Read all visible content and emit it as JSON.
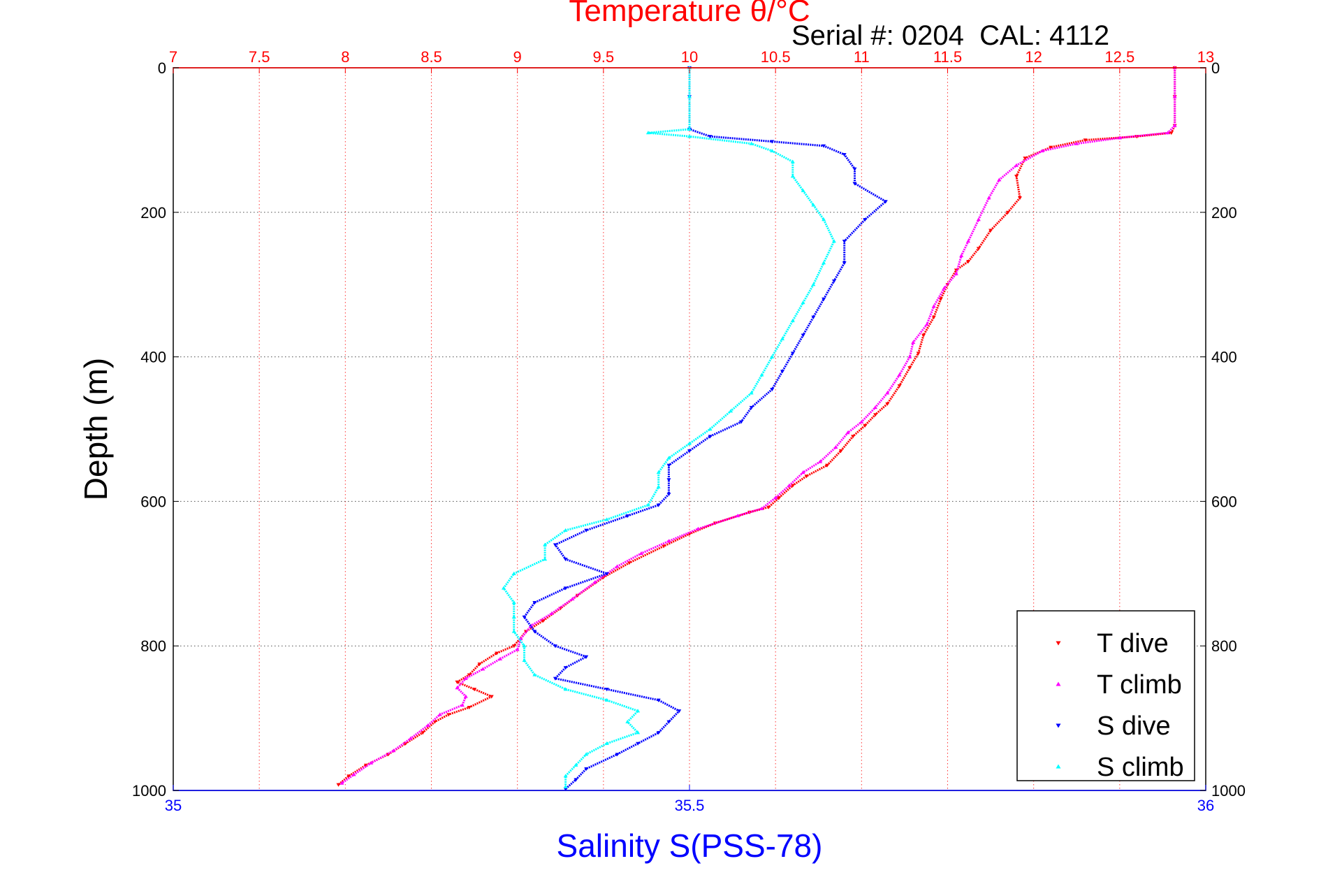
{
  "chart_data": {
    "type": "scatter",
    "title": "Temperature θ/°C",
    "annotation": "Serial #: 0204  CAL: 4112",
    "xlabel": "Salinity S(PSS-78)",
    "ylabel": "Depth (m)",
    "y_reversed": true,
    "ylim": [
      0,
      1000
    ],
    "yticks": [
      "0",
      "200",
      "400",
      "600",
      "800",
      "1000"
    ],
    "temperature_axis": {
      "position": "top",
      "range": [
        7,
        13
      ],
      "ticks": [
        "7",
        "7.5",
        "8",
        "8.5",
        "9",
        "9.5",
        "10",
        "10.5",
        "11",
        "11.5",
        "12",
        "12.5",
        "13"
      ],
      "color": "#ff0000"
    },
    "salinity_axis": {
      "position": "bottom",
      "range": [
        35,
        36
      ],
      "ticks": [
        "35",
        "35.5",
        "36"
      ],
      "color": "#0000ff"
    },
    "grid": true,
    "legend_position": "bottom-right",
    "series": [
      {
        "name": "T dive",
        "axis": "temperature",
        "color": "#ff0000",
        "marker": "triangle-down",
        "points": [
          [
            12.82,
            0
          ],
          [
            12.82,
            40
          ],
          [
            12.82,
            80
          ],
          [
            12.8,
            90
          ],
          [
            12.6,
            95
          ],
          [
            12.3,
            100
          ],
          [
            12.1,
            110
          ],
          [
            11.95,
            125
          ],
          [
            11.9,
            150
          ],
          [
            11.92,
            180
          ],
          [
            11.85,
            200
          ],
          [
            11.75,
            225
          ],
          [
            11.68,
            250
          ],
          [
            11.62,
            268
          ],
          [
            11.55,
            280
          ],
          [
            11.5,
            300
          ],
          [
            11.46,
            320
          ],
          [
            11.42,
            345
          ],
          [
            11.36,
            370
          ],
          [
            11.33,
            395
          ],
          [
            11.28,
            415
          ],
          [
            11.22,
            440
          ],
          [
            11.15,
            465
          ],
          [
            11.08,
            480
          ],
          [
            11.02,
            495
          ],
          [
            10.95,
            510
          ],
          [
            10.88,
            530
          ],
          [
            10.8,
            550
          ],
          [
            10.68,
            565
          ],
          [
            10.6,
            578
          ],
          [
            10.52,
            595
          ],
          [
            10.46,
            608
          ],
          [
            10.35,
            615
          ],
          [
            10.15,
            630
          ],
          [
            10.0,
            645
          ],
          [
            9.85,
            662
          ],
          [
            9.65,
            685
          ],
          [
            9.5,
            705
          ],
          [
            9.35,
            730
          ],
          [
            9.25,
            748
          ],
          [
            9.15,
            765
          ],
          [
            9.05,
            780
          ],
          [
            8.98,
            800
          ],
          [
            8.88,
            810
          ],
          [
            8.78,
            825
          ],
          [
            8.72,
            840
          ],
          [
            8.65,
            850
          ],
          [
            8.75,
            860
          ],
          [
            8.85,
            870
          ],
          [
            8.72,
            885
          ],
          [
            8.6,
            895
          ],
          [
            8.52,
            905
          ],
          [
            8.45,
            920
          ],
          [
            8.35,
            935
          ],
          [
            8.25,
            950
          ],
          [
            8.12,
            965
          ],
          [
            8.02,
            980
          ],
          [
            7.96,
            992
          ]
        ]
      },
      {
        "name": "T climb",
        "axis": "temperature",
        "color": "#ff00ff",
        "marker": "triangle-up",
        "points": [
          [
            12.82,
            0
          ],
          [
            12.82,
            40
          ],
          [
            12.82,
            80
          ],
          [
            12.78,
            90
          ],
          [
            12.5,
            97
          ],
          [
            12.25,
            105
          ],
          [
            12.05,
            115
          ],
          [
            11.9,
            135
          ],
          [
            11.8,
            155
          ],
          [
            11.74,
            180
          ],
          [
            11.68,
            210
          ],
          [
            11.62,
            240
          ],
          [
            11.58,
            260
          ],
          [
            11.55,
            285
          ],
          [
            11.48,
            305
          ],
          [
            11.42,
            330
          ],
          [
            11.38,
            355
          ],
          [
            11.3,
            380
          ],
          [
            11.28,
            400
          ],
          [
            11.22,
            425
          ],
          [
            11.15,
            450
          ],
          [
            11.08,
            470
          ],
          [
            11.0,
            490
          ],
          [
            10.92,
            505
          ],
          [
            10.85,
            525
          ],
          [
            10.76,
            545
          ],
          [
            10.66,
            560
          ],
          [
            10.58,
            578
          ],
          [
            10.5,
            595
          ],
          [
            10.42,
            610
          ],
          [
            10.28,
            620
          ],
          [
            10.05,
            638
          ],
          [
            9.88,
            655
          ],
          [
            9.72,
            672
          ],
          [
            9.58,
            690
          ],
          [
            9.45,
            712
          ],
          [
            9.32,
            735
          ],
          [
            9.2,
            755
          ],
          [
            9.08,
            772
          ],
          [
            9.02,
            790
          ],
          [
            9.0,
            805
          ],
          [
            8.9,
            818
          ],
          [
            8.8,
            832
          ],
          [
            8.7,
            845
          ],
          [
            8.65,
            858
          ],
          [
            8.7,
            870
          ],
          [
            8.68,
            882
          ],
          [
            8.55,
            895
          ],
          [
            8.48,
            910
          ],
          [
            8.38,
            928
          ],
          [
            8.28,
            945
          ],
          [
            8.15,
            962
          ],
          [
            8.05,
            978
          ],
          [
            7.98,
            990
          ]
        ]
      },
      {
        "name": "S dive",
        "axis": "salinity",
        "color": "#0000ff",
        "marker": "triangle-down",
        "points": [
          [
            35.5,
            0
          ],
          [
            35.5,
            40
          ],
          [
            35.5,
            85
          ],
          [
            35.52,
            95
          ],
          [
            35.58,
            102
          ],
          [
            35.63,
            108
          ],
          [
            35.65,
            120
          ],
          [
            35.66,
            140
          ],
          [
            35.66,
            160
          ],
          [
            35.69,
            185
          ],
          [
            35.67,
            210
          ],
          [
            35.65,
            240
          ],
          [
            35.65,
            270
          ],
          [
            35.64,
            295
          ],
          [
            35.63,
            320
          ],
          [
            35.62,
            345
          ],
          [
            35.61,
            370
          ],
          [
            35.6,
            395
          ],
          [
            35.59,
            420
          ],
          [
            35.58,
            445
          ],
          [
            35.56,
            470
          ],
          [
            35.55,
            490
          ],
          [
            35.52,
            510
          ],
          [
            35.5,
            530
          ],
          [
            35.48,
            550
          ],
          [
            35.48,
            570
          ],
          [
            35.48,
            590
          ],
          [
            35.47,
            605
          ],
          [
            35.44,
            620
          ],
          [
            35.4,
            640
          ],
          [
            35.37,
            660
          ],
          [
            35.38,
            680
          ],
          [
            35.42,
            700
          ],
          [
            35.38,
            720
          ],
          [
            35.35,
            740
          ],
          [
            35.34,
            760
          ],
          [
            35.35,
            780
          ],
          [
            35.37,
            800
          ],
          [
            35.4,
            815
          ],
          [
            35.38,
            830
          ],
          [
            35.37,
            845
          ],
          [
            35.42,
            860
          ],
          [
            35.47,
            875
          ],
          [
            35.49,
            890
          ],
          [
            35.48,
            905
          ],
          [
            35.47,
            920
          ],
          [
            35.45,
            935
          ],
          [
            35.43,
            950
          ],
          [
            35.4,
            970
          ],
          [
            35.39,
            985
          ],
          [
            35.38,
            998
          ]
        ]
      },
      {
        "name": "S climb",
        "axis": "salinity",
        "color": "#00ffff",
        "marker": "triangle-up",
        "points": [
          [
            35.5,
            0
          ],
          [
            35.5,
            40
          ],
          [
            35.5,
            85
          ],
          [
            35.46,
            90
          ],
          [
            35.5,
            95
          ],
          [
            35.56,
            105
          ],
          [
            35.58,
            115
          ],
          [
            35.6,
            130
          ],
          [
            35.6,
            150
          ],
          [
            35.61,
            170
          ],
          [
            35.62,
            190
          ],
          [
            35.63,
            210
          ],
          [
            35.64,
            240
          ],
          [
            35.63,
            270
          ],
          [
            35.62,
            300
          ],
          [
            35.61,
            325
          ],
          [
            35.6,
            350
          ],
          [
            35.59,
            375
          ],
          [
            35.58,
            400
          ],
          [
            35.57,
            425
          ],
          [
            35.56,
            450
          ],
          [
            35.54,
            475
          ],
          [
            35.52,
            500
          ],
          [
            35.5,
            520
          ],
          [
            35.48,
            540
          ],
          [
            35.47,
            560
          ],
          [
            35.47,
            580
          ],
          [
            35.46,
            605
          ],
          [
            35.42,
            625
          ],
          [
            35.38,
            640
          ],
          [
            35.36,
            660
          ],
          [
            35.36,
            680
          ],
          [
            35.33,
            700
          ],
          [
            35.32,
            720
          ],
          [
            35.33,
            740
          ],
          [
            35.33,
            760
          ],
          [
            35.33,
            780
          ],
          [
            35.34,
            800
          ],
          [
            35.34,
            820
          ],
          [
            35.35,
            840
          ],
          [
            35.38,
            860
          ],
          [
            35.42,
            875
          ],
          [
            35.45,
            890
          ],
          [
            35.44,
            905
          ],
          [
            35.45,
            920
          ],
          [
            35.42,
            935
          ],
          [
            35.4,
            950
          ],
          [
            35.39,
            965
          ],
          [
            35.38,
            980
          ],
          [
            35.38,
            995
          ]
        ]
      }
    ]
  }
}
